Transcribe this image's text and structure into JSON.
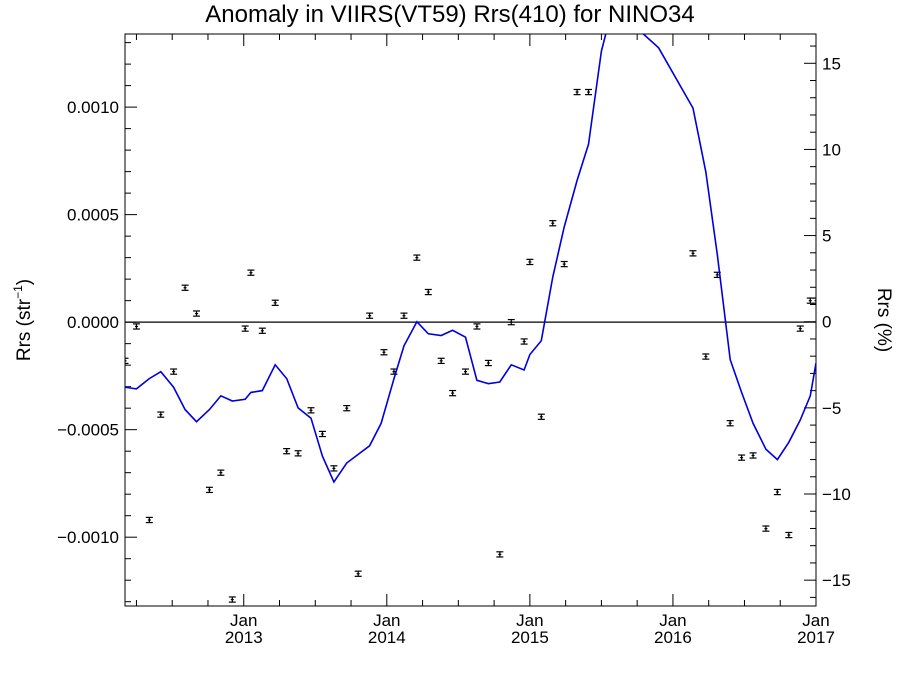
{
  "chart_data": {
    "type": "line",
    "title": "Anomaly in VIIRS(VT59) Rrs(410) for NINO34",
    "ylabel_left_main": "Rrs (str",
    "ylabel_left_sup": "−1",
    "ylabel_left_end": ")",
    "ylabel_right": "Rrs (%)",
    "xlim": [
      2012.17,
      2017.0
    ],
    "ylim_left": [
      -0.00132,
      0.00134
    ],
    "ylim_right": [
      -16.5,
      16.7
    ],
    "x_ticks": [
      {
        "x": 2013.0,
        "month": "Jan",
        "year": "2013"
      },
      {
        "x": 2014.0,
        "month": "Jan",
        "year": "2014"
      },
      {
        "x": 2015.0,
        "month": "Jan",
        "year": "2015"
      },
      {
        "x": 2016.0,
        "month": "Jan",
        "year": "2016"
      },
      {
        "x": 2017.0,
        "month": "Jan",
        "year": "2017"
      }
    ],
    "y_ticks_left": [
      {
        "v": 0.001,
        "label": "0.0010"
      },
      {
        "v": 0.0005,
        "label": "0.0005"
      },
      {
        "v": 0.0,
        "label": "0.0000"
      },
      {
        "v": -0.0005,
        "label": "−0.0005"
      },
      {
        "v": -0.001,
        "label": "−0.0010"
      }
    ],
    "y_ticks_right": [
      {
        "v": 15,
        "label": "15"
      },
      {
        "v": 10,
        "label": "10"
      },
      {
        "v": 5,
        "label": "5"
      },
      {
        "v": 0,
        "label": "0"
      },
      {
        "v": -5,
        "label": "−5"
      },
      {
        "v": -10,
        "label": "−10"
      },
      {
        "v": -15,
        "label": "−15"
      }
    ],
    "zero_line": true,
    "series": [
      {
        "axis": "left",
        "style": "points-with-errorbars",
        "color": "#000000",
        "x": [
          2012.17,
          2012.25,
          2012.34,
          2012.42,
          2012.51,
          2012.59,
          2012.67,
          2012.76,
          2012.84,
          2012.92,
          2013.01,
          2013.05,
          2013.13,
          2013.22,
          2013.3,
          2013.38,
          2013.47,
          2013.55,
          2013.63,
          2013.72,
          2013.8,
          2013.88,
          2013.98,
          2014.05,
          2014.12,
          2014.21,
          2014.29,
          2014.38,
          2014.46,
          2014.55,
          2014.63,
          2014.71,
          2014.79,
          2014.87,
          2014.96,
          2015.0,
          2015.08,
          2015.16,
          2015.24,
          2015.33,
          2015.41,
          2016.14,
          2016.23,
          2016.31,
          2016.4,
          2016.48,
          2016.56,
          2016.65,
          2016.73,
          2016.81,
          2016.89,
          2016.96,
          2017.0
        ],
        "y": [
          -0.00018,
          -2e-05,
          -0.00092,
          -0.00043,
          -0.00023,
          0.00016,
          4e-05,
          -0.00078,
          -0.0007,
          -0.00129,
          -3e-05,
          0.00023,
          -4e-05,
          9e-05,
          -0.0006,
          -0.00061,
          -0.00041,
          -0.00052,
          -0.00068,
          -0.0004,
          -0.00117,
          3e-05,
          -0.00014,
          -0.00023,
          3e-05,
          0.0003,
          0.00014,
          -0.00018,
          -0.00033,
          -0.00023,
          -2e-05,
          -0.00019,
          -0.00108,
          0.0,
          -9e-05,
          0.00028,
          -0.00044,
          0.00046,
          0.00027,
          0.00107,
          0.00107,
          0.00032,
          -0.00016,
          0.00022,
          -0.00047,
          -0.00063,
          -0.00062,
          -0.00096,
          -0.00079,
          -0.00099,
          -3e-05,
          0.0001,
          0.0001
        ],
        "err": 1.2e-05
      },
      {
        "axis": "right",
        "style": "line",
        "color": "#0000dd",
        "x": [
          2012.17,
          2012.25,
          2012.34,
          2012.42,
          2012.51,
          2012.59,
          2012.67,
          2012.76,
          2012.84,
          2012.92,
          2013.01,
          2013.05,
          2013.13,
          2013.22,
          2013.3,
          2013.38,
          2013.47,
          2013.55,
          2013.63,
          2013.72,
          2013.8,
          2013.88,
          2013.96,
          2014.05,
          2014.12,
          2014.21,
          2014.29,
          2014.38,
          2014.46,
          2014.55,
          2014.63,
          2014.71,
          2014.79,
          2014.87,
          2014.96,
          2015.0,
          2015.08,
          2015.16,
          2015.24,
          2015.33,
          2015.41,
          2015.5,
          2015.58,
          2015.9,
          2016.14,
          2016.23,
          2016.31,
          2016.4,
          2016.48,
          2016.56,
          2016.65,
          2016.73,
          2016.81,
          2016.89,
          2016.96,
          2017.0
        ],
        "y": [
          -3.8,
          -3.9,
          -3.3,
          -2.9,
          -3.8,
          -5.1,
          -5.8,
          -5.1,
          -4.3,
          -4.6,
          -4.5,
          -4.1,
          -4.0,
          -2.5,
          -3.3,
          -5.0,
          -5.6,
          -7.8,
          -9.3,
          -8.2,
          -7.7,
          -7.2,
          -5.9,
          -3.3,
          -1.4,
          0.0,
          -0.7,
          -0.8,
          -0.5,
          -0.9,
          -3.4,
          -3.6,
          -3.5,
          -2.5,
          -2.8,
          -1.9,
          -1.1,
          2.6,
          5.5,
          8.2,
          10.3,
          15.7,
          18.3,
          15.9,
          12.4,
          8.7,
          3.9,
          -2.2,
          -4.1,
          -5.9,
          -7.4,
          -8.0,
          -7.0,
          -5.7,
          -4.3,
          -2.4
        ]
      }
    ]
  }
}
